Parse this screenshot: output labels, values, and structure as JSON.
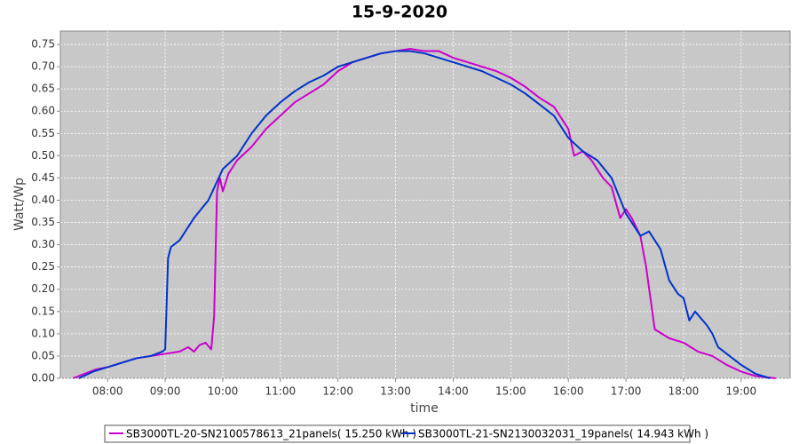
{
  "chart_data": {
    "type": "line",
    "title": "15-9-2020",
    "x_label": "time",
    "y_label": "Watt/Wp",
    "xlim": [
      7.18,
      19.85
    ],
    "xticks": [
      {
        "value": 8,
        "label": "08:00"
      },
      {
        "value": 9,
        "label": "09:00"
      },
      {
        "value": 10,
        "label": "10:00"
      },
      {
        "value": 11,
        "label": "11:00"
      },
      {
        "value": 12,
        "label": "12:00"
      },
      {
        "value": 13,
        "label": "13:00"
      },
      {
        "value": 14,
        "label": "14:00"
      },
      {
        "value": 15,
        "label": "15:00"
      },
      {
        "value": 16,
        "label": "16:00"
      },
      {
        "value": 17,
        "label": "17:00"
      },
      {
        "value": 18,
        "label": "18:00"
      },
      {
        "value": 19,
        "label": "19:00"
      }
    ],
    "ylim": [
      0,
      0.78
    ],
    "yticks": [
      {
        "value": 0,
        "label": "0.00"
      },
      {
        "value": 0.05,
        "label": "0.05"
      },
      {
        "value": 0.1,
        "label": "0.10"
      },
      {
        "value": 0.15,
        "label": "0.15"
      },
      {
        "value": 0.2,
        "label": "0.20"
      },
      {
        "value": 0.25,
        "label": "0.25"
      },
      {
        "value": 0.3,
        "label": "0.30"
      },
      {
        "value": 0.35,
        "label": "0.35"
      },
      {
        "value": 0.4,
        "label": "0.40"
      },
      {
        "value": 0.45,
        "label": "0.45"
      },
      {
        "value": 0.5,
        "label": "0.50"
      },
      {
        "value": 0.55,
        "label": "0.55"
      },
      {
        "value": 0.6,
        "label": "0.60"
      },
      {
        "value": 0.65,
        "label": "0.65"
      },
      {
        "value": 0.7,
        "label": "0.70"
      },
      {
        "value": 0.75,
        "label": "0.75"
      }
    ],
    "grid": true,
    "series": [
      {
        "name": "SB3000TL-20-SN2100578613_21panels( 15.250 kWh )",
        "color": "#cc00cc",
        "x": [
          7.4,
          7.6,
          7.8,
          8.0,
          8.25,
          8.5,
          8.75,
          9.0,
          9.25,
          9.4,
          9.5,
          9.6,
          9.7,
          9.8,
          9.85,
          9.9,
          9.95,
          10.0,
          10.1,
          10.25,
          10.5,
          10.75,
          11.0,
          11.25,
          11.5,
          11.75,
          12.0,
          12.25,
          12.5,
          12.75,
          13.0,
          13.25,
          13.5,
          13.75,
          14.0,
          14.25,
          14.5,
          14.75,
          15.0,
          15.25,
          15.5,
          15.75,
          16.0,
          16.1,
          16.25,
          16.4,
          16.5,
          16.6,
          16.75,
          16.9,
          17.0,
          17.1,
          17.25,
          17.35,
          17.5,
          17.75,
          18.0,
          18.25,
          18.5,
          18.75,
          19.0,
          19.25,
          19.6
        ],
        "values": [
          0.0,
          0.01,
          0.02,
          0.025,
          0.035,
          0.045,
          0.05,
          0.055,
          0.06,
          0.07,
          0.06,
          0.075,
          0.08,
          0.065,
          0.14,
          0.42,
          0.45,
          0.42,
          0.46,
          0.49,
          0.52,
          0.56,
          0.59,
          0.62,
          0.64,
          0.66,
          0.69,
          0.71,
          0.72,
          0.73,
          0.735,
          0.74,
          0.735,
          0.735,
          0.72,
          0.71,
          0.7,
          0.69,
          0.675,
          0.655,
          0.63,
          0.61,
          0.56,
          0.5,
          0.51,
          0.49,
          0.47,
          0.45,
          0.43,
          0.36,
          0.38,
          0.36,
          0.32,
          0.25,
          0.11,
          0.09,
          0.08,
          0.06,
          0.05,
          0.03,
          0.015,
          0.005,
          0.0
        ]
      },
      {
        "name": "SB3000TL-21-SN2130032031_19panels( 14.943 kWh )",
        "color": "#0033cc",
        "x": [
          7.5,
          7.75,
          8.0,
          8.25,
          8.5,
          8.75,
          8.95,
          9.0,
          9.05,
          9.1,
          9.25,
          9.5,
          9.75,
          10.0,
          10.25,
          10.5,
          10.75,
          11.0,
          11.25,
          11.5,
          11.75,
          12.0,
          12.25,
          12.5,
          12.75,
          13.0,
          13.25,
          13.5,
          13.75,
          14.0,
          14.25,
          14.5,
          14.75,
          15.0,
          15.25,
          15.5,
          15.75,
          16.0,
          16.25,
          16.5,
          16.75,
          17.0,
          17.25,
          17.4,
          17.6,
          17.75,
          17.9,
          18.0,
          18.1,
          18.2,
          18.4,
          18.5,
          18.6,
          18.75,
          19.0,
          19.25,
          19.5
        ],
        "values": [
          0.0,
          0.015,
          0.025,
          0.035,
          0.045,
          0.05,
          0.06,
          0.065,
          0.27,
          0.295,
          0.31,
          0.36,
          0.4,
          0.47,
          0.5,
          0.55,
          0.59,
          0.62,
          0.645,
          0.665,
          0.68,
          0.7,
          0.71,
          0.72,
          0.73,
          0.735,
          0.735,
          0.73,
          0.72,
          0.71,
          0.7,
          0.69,
          0.675,
          0.66,
          0.64,
          0.615,
          0.59,
          0.54,
          0.51,
          0.49,
          0.45,
          0.37,
          0.32,
          0.33,
          0.29,
          0.22,
          0.19,
          0.18,
          0.13,
          0.15,
          0.12,
          0.1,
          0.07,
          0.055,
          0.03,
          0.01,
          0.0
        ]
      }
    ]
  }
}
